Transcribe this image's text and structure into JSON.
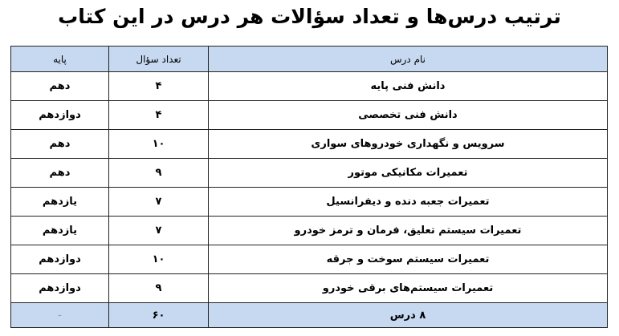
{
  "title": "ترتیب درس‌ها و تعداد سؤالات هر درس در این کتاب",
  "table": {
    "headers": {
      "name": "نام درس",
      "count": "تعداد سؤال",
      "grade": "پایه"
    },
    "rows": [
      {
        "name": "دانش فنی پایه",
        "count": "۴",
        "grade": "دهم"
      },
      {
        "name": "دانش فنی تخصصی",
        "count": "۴",
        "grade": "دوازدهم"
      },
      {
        "name": "سرویس و نگهداری خودروهای سواری",
        "count": "۱۰",
        "grade": "دهم"
      },
      {
        "name": "تعمیرات مکانیکی موتور",
        "count": "۹",
        "grade": "دهم"
      },
      {
        "name": "تعمیرات جعبه دنده و دیفرانسیل",
        "count": "۷",
        "grade": "یازدهم"
      },
      {
        "name": "تعمیرات سیستم تعلیق، فرمان و ترمز خودرو",
        "count": "۷",
        "grade": "یازدهم"
      },
      {
        "name": "تعمیرات سیستم سوخت و جرقه",
        "count": "۱۰",
        "grade": "دوازدهم"
      },
      {
        "name": "تعمیرات سیستم‌های برقی خودرو",
        "count": "۹",
        "grade": "دوازدهم"
      }
    ],
    "footer": {
      "name": "۸ درس",
      "count": "۶۰",
      "grade": "-"
    }
  },
  "colors": {
    "header_bg": "#c6d9f0"
  }
}
